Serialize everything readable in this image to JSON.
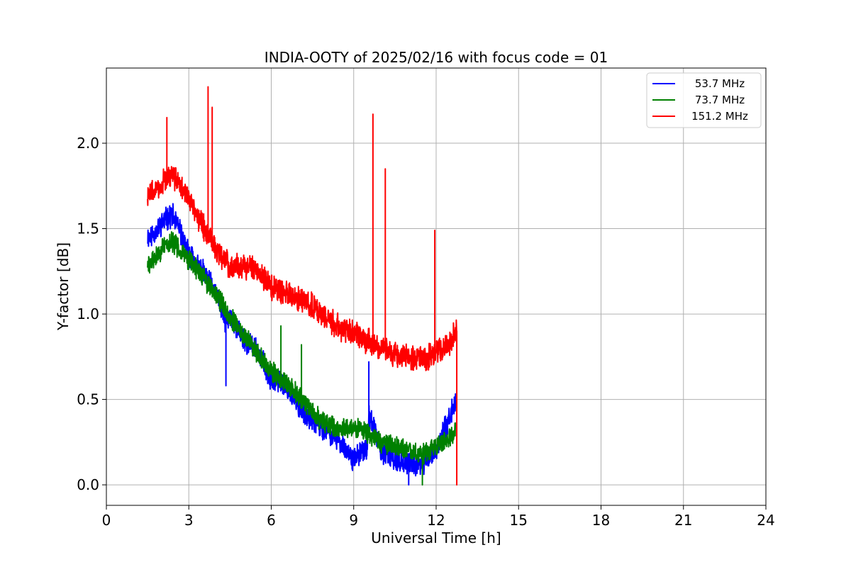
{
  "chart_data": {
    "type": "line",
    "title": "INDIA-OOTY of 2025/02/16 with focus code = 01",
    "xlabel": "Universal Time [h]",
    "ylabel": "Y-factor [dB]",
    "xlim": [
      0,
      24
    ],
    "ylim": [
      -0.12,
      2.44
    ],
    "xticks": [
      0,
      3,
      6,
      9,
      12,
      15,
      18,
      21,
      24
    ],
    "xtick_labels": [
      "0",
      "3",
      "6",
      "9",
      "12",
      "15",
      "18",
      "21",
      "24"
    ],
    "yticks": [
      0.0,
      0.5,
      1.0,
      1.5,
      2.0
    ],
    "ytick_labels": [
      "0.0",
      "0.5",
      "1.0",
      "1.5",
      "2.0"
    ],
    "grid": true,
    "legend_position": "top-right",
    "series": [
      {
        "name": "53.7 MHz",
        "color": "#0000ff",
        "x": [
          1.5,
          1.8,
          2.1,
          2.4,
          2.7,
          3.0,
          3.5,
          4.0,
          4.35,
          4.5,
          5.0,
          5.5,
          6.0,
          6.5,
          7.0,
          7.5,
          8.0,
          8.5,
          9.0,
          9.5,
          9.55,
          10.0,
          10.5,
          11.0,
          11.5,
          12.0,
          12.5,
          12.75
        ],
        "y": [
          1.45,
          1.48,
          1.55,
          1.58,
          1.48,
          1.35,
          1.25,
          1.12,
          0.95,
          0.98,
          0.85,
          0.78,
          0.62,
          0.58,
          0.45,
          0.38,
          0.32,
          0.25,
          0.15,
          0.22,
          0.42,
          0.2,
          0.15,
          0.12,
          0.12,
          0.2,
          0.4,
          0.5
        ],
        "spikes": [
          {
            "x": 4.35,
            "y": 0.58
          },
          {
            "x": 9.55,
            "y": 0.72
          },
          {
            "x": 11.0,
            "y": 0.0
          }
        ]
      },
      {
        "name": "73.7 MHz",
        "color": "#008000",
        "x": [
          1.5,
          1.8,
          2.1,
          2.4,
          2.7,
          3.0,
          3.5,
          4.0,
          4.5,
          5.0,
          5.5,
          6.0,
          6.5,
          7.0,
          7.5,
          8.0,
          8.5,
          9.0,
          9.5,
          10.0,
          10.5,
          11.0,
          11.5,
          12.0,
          12.5,
          12.7
        ],
        "y": [
          1.28,
          1.33,
          1.4,
          1.42,
          1.38,
          1.32,
          1.22,
          1.12,
          0.98,
          0.88,
          0.78,
          0.66,
          0.6,
          0.52,
          0.42,
          0.36,
          0.32,
          0.34,
          0.3,
          0.25,
          0.22,
          0.2,
          0.18,
          0.22,
          0.28,
          0.32
        ],
        "spikes": [
          {
            "x": 6.35,
            "y": 0.93
          },
          {
            "x": 7.1,
            "y": 0.82
          },
          {
            "x": 11.5,
            "y": 0.0
          }
        ]
      },
      {
        "name": "151.2 MHz",
        "color": "#ff0000",
        "x": [
          1.5,
          1.8,
          2.1,
          2.4,
          2.7,
          3.0,
          3.5,
          4.0,
          4.5,
          5.0,
          5.5,
          6.0,
          6.5,
          7.0,
          7.5,
          8.0,
          8.5,
          9.0,
          9.5,
          10.0,
          10.5,
          11.0,
          11.5,
          12.0,
          12.5,
          12.75
        ],
        "y": [
          1.7,
          1.72,
          1.78,
          1.82,
          1.75,
          1.68,
          1.52,
          1.38,
          1.28,
          1.28,
          1.26,
          1.16,
          1.12,
          1.08,
          1.05,
          0.98,
          0.92,
          0.9,
          0.84,
          0.8,
          0.76,
          0.74,
          0.73,
          0.78,
          0.84,
          0.9
        ],
        "spikes": [
          {
            "x": 2.2,
            "y": 2.15
          },
          {
            "x": 3.7,
            "y": 2.33
          },
          {
            "x": 3.85,
            "y": 2.21
          },
          {
            "x": 9.7,
            "y": 2.17
          },
          {
            "x": 10.15,
            "y": 1.85
          },
          {
            "x": 11.95,
            "y": 1.49
          },
          {
            "x": 12.75,
            "y": 0.0
          }
        ]
      }
    ]
  }
}
